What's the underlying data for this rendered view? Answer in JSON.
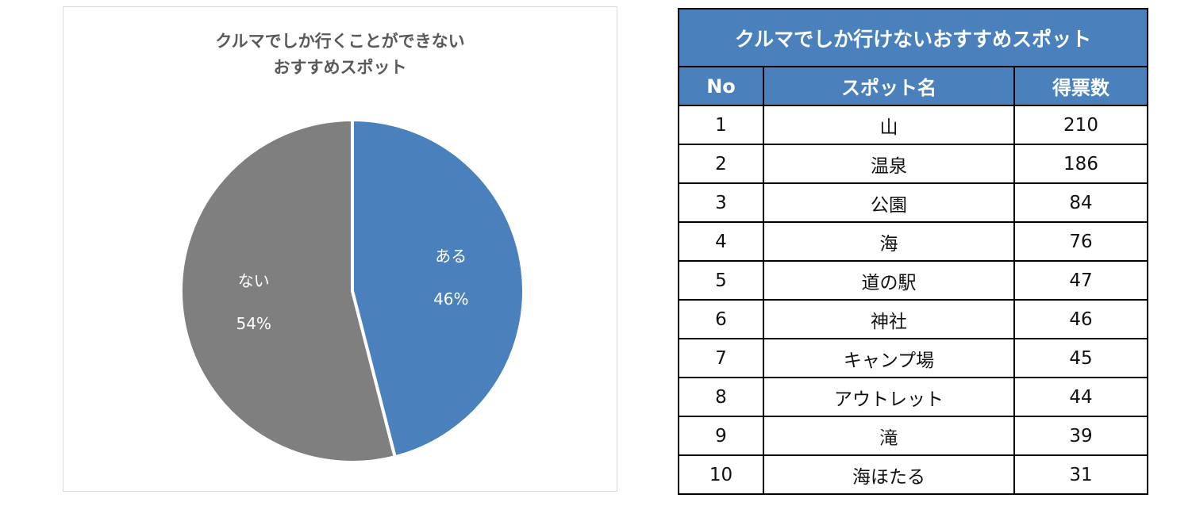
{
  "colors": {
    "accent_blue": "#4a81bd",
    "slice_gray": "#7f7f7f",
    "title_gray": "#595959"
  },
  "chart_data": {
    "type": "pie",
    "title_line1": "クルマでしか行くことができない",
    "title_line2": "おすすめスポット",
    "slices": [
      {
        "label": "ある",
        "value": 46,
        "value_label": "46%",
        "color": "#4a81bd"
      },
      {
        "label": "ない",
        "value": 54,
        "value_label": "54%",
        "color": "#7f7f7f"
      }
    ]
  },
  "table": {
    "title": "クルマでしか行けないおすすめスポット",
    "headers": {
      "no": "No",
      "name": "スポット名",
      "votes": "得票数"
    },
    "rows": [
      {
        "no": "1",
        "name": "山",
        "votes": "210"
      },
      {
        "no": "2",
        "name": "温泉",
        "votes": "186"
      },
      {
        "no": "3",
        "name": "公園",
        "votes": "84"
      },
      {
        "no": "4",
        "name": "海",
        "votes": "76"
      },
      {
        "no": "5",
        "name": "道の駅",
        "votes": "47"
      },
      {
        "no": "6",
        "name": "神社",
        "votes": "46"
      },
      {
        "no": "7",
        "name": "キャンプ場",
        "votes": "45"
      },
      {
        "no": "8",
        "name": "アウトレット",
        "votes": "44"
      },
      {
        "no": "9",
        "name": "滝",
        "votes": "39"
      },
      {
        "no": "10",
        "name": "海ほたる",
        "votes": "31"
      }
    ]
  }
}
